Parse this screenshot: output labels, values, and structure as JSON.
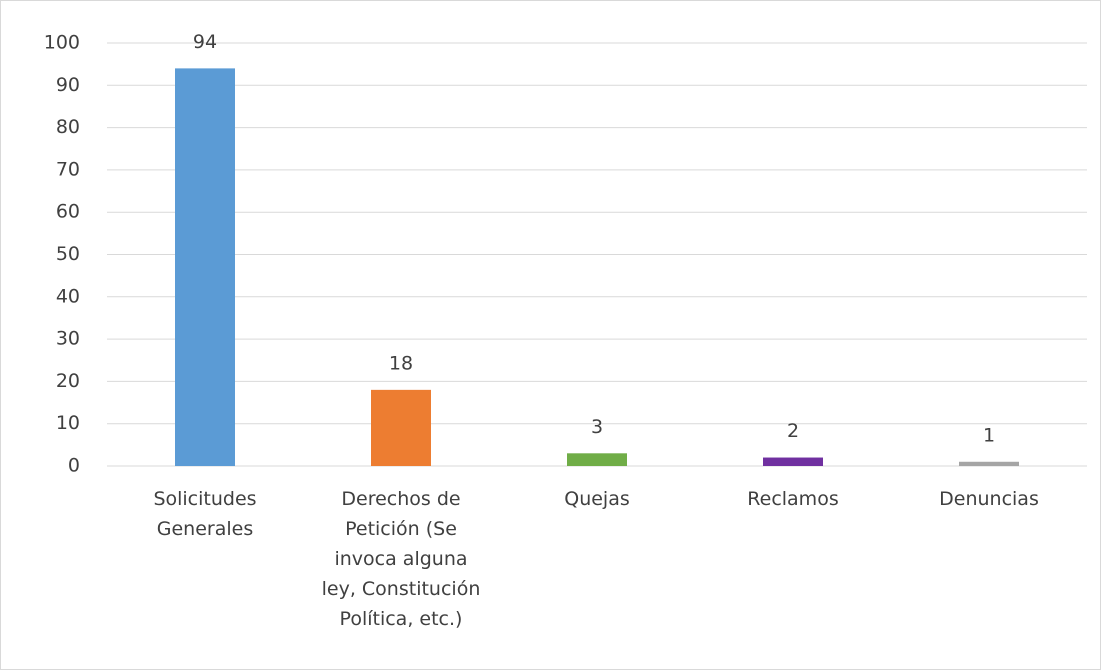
{
  "chart_data": {
    "type": "bar",
    "categories": [
      "Solicitudes Generales",
      "Derechos de Petición (Se invoca alguna ley, Constitución Política, etc.)",
      "Quejas",
      "Reclamos",
      "Denuncias"
    ],
    "values": [
      94,
      18,
      3,
      2,
      1
    ],
    "colors": [
      "#5b9bd5",
      "#ed7d31",
      "#70ad47",
      "#7030a0",
      "#a5a5a5"
    ],
    "ylim": [
      0,
      100
    ],
    "yticks": [
      0,
      10,
      20,
      30,
      40,
      50,
      60,
      70,
      80,
      90,
      100
    ],
    "grid": true
  }
}
